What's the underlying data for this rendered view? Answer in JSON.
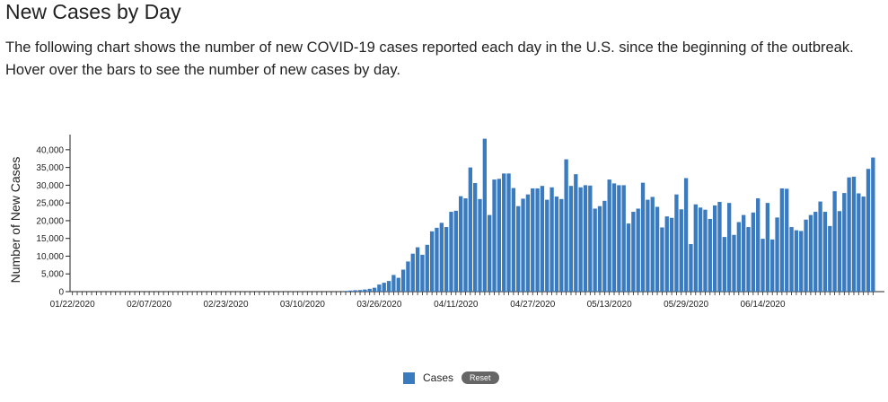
{
  "page": {
    "title": "New Cases by Day",
    "description": "The following chart shows the number of new COVID-19 cases reported each day in the U.S. since the beginning of the outbreak. Hover over the bars to see the number of new cases by day."
  },
  "legend": {
    "label": "Cases",
    "reset_label": "Reset"
  },
  "chart_data": {
    "type": "bar",
    "ylabel": "Number of New Cases",
    "ylim": [
      0,
      43000
    ],
    "y_ticks": [
      0,
      5000,
      10000,
      15000,
      20000,
      25000,
      30000,
      35000,
      40000
    ],
    "y_tick_labels": [
      "0",
      "5,000",
      "10,000",
      "15,000",
      "20,000",
      "25,000",
      "30,000",
      "35,000",
      "40,000"
    ],
    "x_tick_labels": [
      "01/22/2020",
      "02/07/2020",
      "02/23/2020",
      "03/10/2020",
      "03/26/2020",
      "04/11/2020",
      "04/27/2020",
      "05/13/2020",
      "05/29/2020",
      "06/14/2020"
    ],
    "first_date": "01/22/2020",
    "last_date": "06/28/2020",
    "grid": false,
    "color": "#3a7bbf",
    "series": [
      {
        "name": "Cases",
        "values": [
          0,
          0,
          0,
          0,
          0,
          0,
          0,
          0,
          0,
          0,
          0,
          0,
          0,
          0,
          0,
          0,
          0,
          0,
          0,
          0,
          0,
          0,
          0,
          0,
          0,
          0,
          0,
          0,
          0,
          0,
          0,
          0,
          0,
          0,
          0,
          0,
          0,
          0,
          0,
          0,
          0,
          0,
          0,
          0,
          0,
          0,
          0,
          0,
          0,
          0,
          0,
          0,
          0,
          0,
          0,
          0,
          0,
          200,
          300,
          400,
          450,
          600,
          800,
          1100,
          2000,
          2500,
          3000,
          4700,
          3900,
          6200,
          8500,
          10700,
          12500,
          10400,
          13200,
          17000,
          18000,
          19400,
          18200,
          22500,
          22800,
          26900,
          26300,
          35000,
          30600,
          26100,
          43100,
          21600,
          31600,
          31800,
          33300,
          33300,
          29200,
          24100,
          26200,
          27400,
          29100,
          29100,
          29800,
          25900,
          29400,
          26800,
          26100,
          37300,
          29800,
          33100,
          29400,
          30000,
          29900,
          23400,
          24100,
          25600,
          31600,
          30500,
          30000,
          30000,
          19200,
          22500,
          23400,
          30700,
          25900,
          26700,
          23900,
          18100,
          21200,
          20800,
          27400,
          23200,
          32000,
          13400,
          24600,
          23700,
          23100,
          20500,
          24300,
          25300,
          15400,
          25000,
          16000,
          19600,
          21600,
          18200,
          22300,
          26300,
          14900,
          25000,
          14700,
          20900,
          29100,
          29000,
          18200,
          17300,
          17100,
          20300,
          21600,
          22500,
          25400,
          22500,
          18500,
          28300,
          22700,
          27800,
          32200,
          32400,
          27700,
          26800,
          34600,
          37800
        ]
      }
    ]
  }
}
